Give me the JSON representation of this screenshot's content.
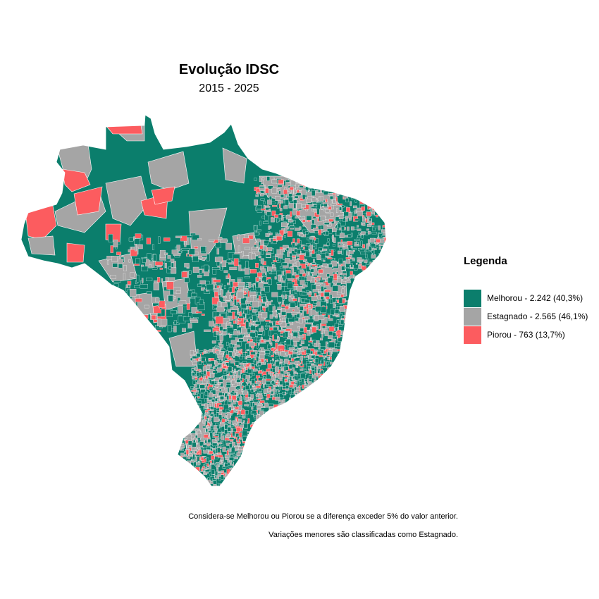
{
  "title": "Evolução IDSC",
  "subtitle": "2015 - 2025",
  "colors": {
    "melhorou": "#0b7e6c",
    "estagnado": "#a5a5a5",
    "piorou": "#fc5c5f",
    "border": "#ffffff"
  },
  "legend": {
    "title": "Legenda",
    "items": [
      {
        "label": "Melhorou - 2.242 (40,3%)",
        "color": "#0b7e6c"
      },
      {
        "label": "Estagnado - 2.565 (46,1%)",
        "color": "#a5a5a5"
      },
      {
        "label": "Piorou - 763 (13,7%)",
        "color": "#fc5c5f"
      }
    ]
  },
  "notes": {
    "line1": "Considera-se Melhorou ou Piorou se a diferença exceder 5% do valor anterior.",
    "line2": "Variações menores são classificadas como Estagnado."
  }
}
